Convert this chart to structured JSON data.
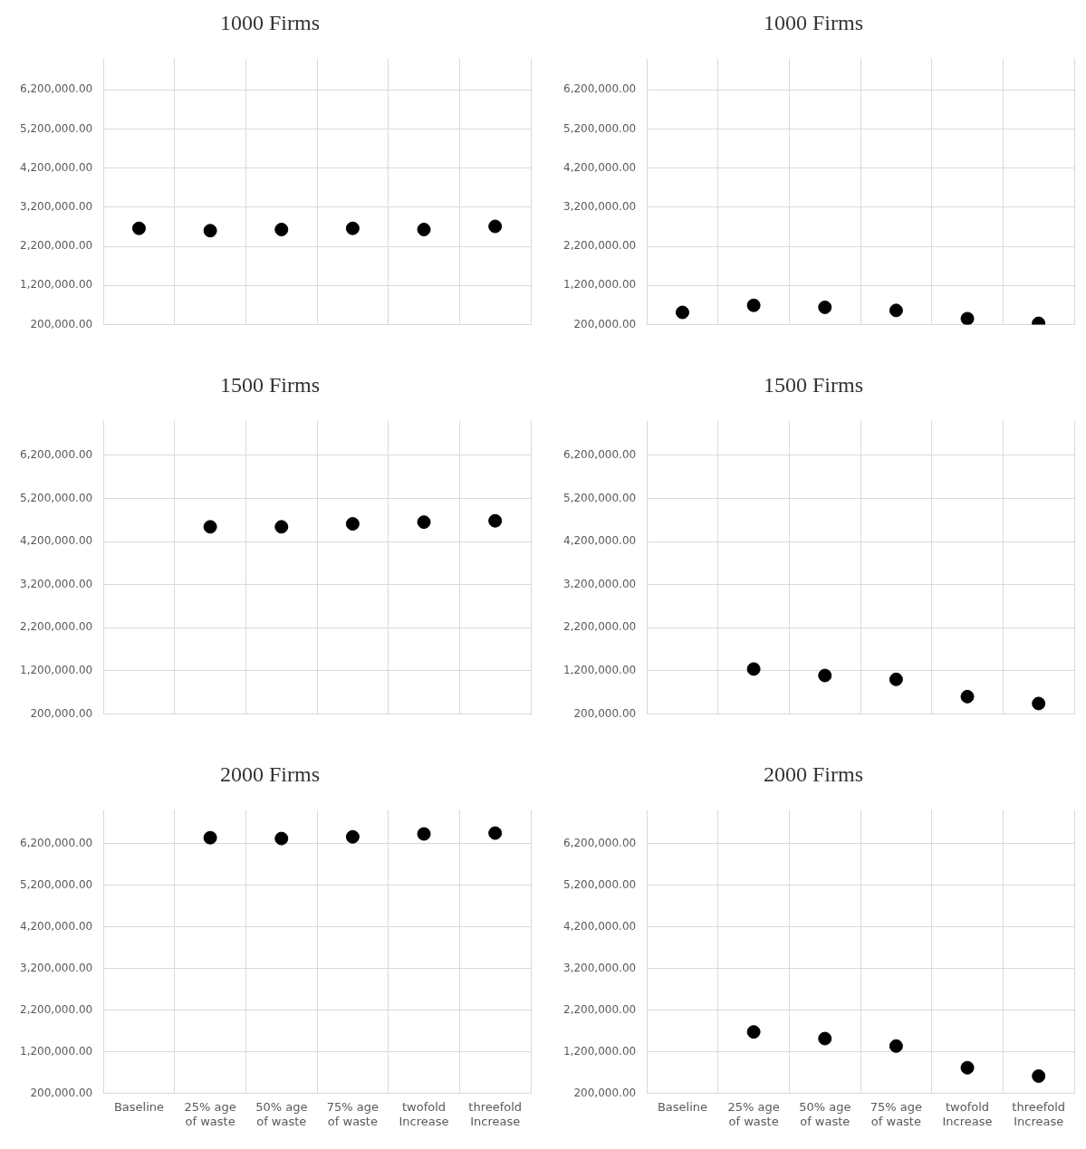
{
  "chart_data": [
    {
      "type": "scatter",
      "title": "1000 Firms",
      "categories": [
        null,
        null,
        null,
        null,
        null,
        null
      ],
      "series": [
        {
          "color": "#000000",
          "values": [
            2660000,
            2600000,
            2630000,
            2660000,
            2630000,
            2710000
          ]
        }
      ],
      "ylim": [
        200000,
        7000000
      ],
      "yticks": [
        {
          "value": 200000,
          "label": "200,000.00"
        },
        {
          "value": 1200000,
          "label": "1,200,000.00"
        },
        {
          "value": 2200000,
          "label": "2,200,000.00"
        },
        {
          "value": 3200000,
          "label": "3,200,000.00"
        },
        {
          "value": 4200000,
          "label": "4,200,000.00"
        },
        {
          "value": 5200000,
          "label": "5,200,000.00"
        },
        {
          "value": 6200000,
          "label": "6,200,000.00"
        }
      ],
      "grid": true,
      "legend": false,
      "marker": "circle"
    },
    {
      "type": "scatter",
      "title": "1000 Firms",
      "categories": [
        null,
        null,
        null,
        null,
        null,
        null
      ],
      "series": [
        {
          "color": "#000000",
          "values": [
            510000,
            690000,
            640000,
            560000,
            350000,
            230000
          ]
        }
      ],
      "ylim": [
        200000,
        7000000
      ],
      "yticks": [
        {
          "value": 200000,
          "label": "200,000.00"
        },
        {
          "value": 1200000,
          "label": "1,200,000.00"
        },
        {
          "value": 2200000,
          "label": "2,200,000.00"
        },
        {
          "value": 3200000,
          "label": "3,200,000.00"
        },
        {
          "value": 4200000,
          "label": "4,200,000.00"
        },
        {
          "value": 5200000,
          "label": "5,200,000.00"
        },
        {
          "value": 6200000,
          "label": "6,200,000.00"
        }
      ],
      "grid": true,
      "legend": false,
      "marker": "circle"
    },
    {
      "type": "scatter",
      "title": "1500 Firms",
      "categories": [
        null,
        null,
        null,
        null,
        null,
        null
      ],
      "series": [
        {
          "color": "#000000",
          "values": [
            null,
            4540000,
            4540000,
            4610000,
            4650000,
            4680000
          ]
        }
      ],
      "ylim": [
        200000,
        7000000
      ],
      "yticks": [
        {
          "value": 200000,
          "label": "200,000.00"
        },
        {
          "value": 1200000,
          "label": "1,200,000.00"
        },
        {
          "value": 2200000,
          "label": "2,200,000.00"
        },
        {
          "value": 3200000,
          "label": "3,200,000.00"
        },
        {
          "value": 4200000,
          "label": "4,200,000.00"
        },
        {
          "value": 5200000,
          "label": "5,200,000.00"
        },
        {
          "value": 6200000,
          "label": "6,200,000.00"
        }
      ],
      "grid": true,
      "legend": false,
      "marker": "circle"
    },
    {
      "type": "scatter",
      "title": "1500 Firms",
      "categories": [
        null,
        null,
        null,
        null,
        null,
        null
      ],
      "series": [
        {
          "color": "#000000",
          "values": [
            null,
            1240000,
            1090000,
            1000000,
            600000,
            440000
          ]
        }
      ],
      "ylim": [
        200000,
        7000000
      ],
      "yticks": [
        {
          "value": 200000,
          "label": "200,000.00"
        },
        {
          "value": 1200000,
          "label": "1,200,000.00"
        },
        {
          "value": 2200000,
          "label": "2,200,000.00"
        },
        {
          "value": 3200000,
          "label": "3,200,000.00"
        },
        {
          "value": 4200000,
          "label": "4,200,000.00"
        },
        {
          "value": 5200000,
          "label": "5,200,000.00"
        },
        {
          "value": 6200000,
          "label": "6,200,000.00"
        }
      ],
      "grid": true,
      "legend": false,
      "marker": "circle"
    },
    {
      "type": "scatter",
      "title": "2000 Firms",
      "categories": [
        "Baseline",
        "25% age\nof waste",
        "50% age\nof waste",
        "75% age\nof waste",
        "twofold\nIncrease",
        "threefold\nIncrease"
      ],
      "series": [
        {
          "color": "#000000",
          "values": [
            null,
            6340000,
            6320000,
            6360000,
            6430000,
            6450000
          ]
        }
      ],
      "ylim": [
        200000,
        7000000
      ],
      "yticks": [
        {
          "value": 200000,
          "label": "200,000.00"
        },
        {
          "value": 1200000,
          "label": "1,200,000.00"
        },
        {
          "value": 2200000,
          "label": "2,200,000.00"
        },
        {
          "value": 3200000,
          "label": "3,200,000.00"
        },
        {
          "value": 4200000,
          "label": "4,200,000.00"
        },
        {
          "value": 5200000,
          "label": "5,200,000.00"
        },
        {
          "value": 6200000,
          "label": "6,200,000.00"
        }
      ],
      "grid": true,
      "legend": false,
      "marker": "circle"
    },
    {
      "type": "scatter",
      "title": "2000 Firms",
      "categories": [
        "Baseline",
        "25% age\nof waste",
        "50% age\nof waste",
        "75% age\nof waste",
        "twofold\nIncrease",
        "threefold\nIncrease"
      ],
      "series": [
        {
          "color": "#000000",
          "values": [
            null,
            1680000,
            1520000,
            1340000,
            820000,
            620000
          ]
        }
      ],
      "ylim": [
        200000,
        7000000
      ],
      "yticks": [
        {
          "value": 200000,
          "label": "200,000.00"
        },
        {
          "value": 1200000,
          "label": "1,200,000.00"
        },
        {
          "value": 2200000,
          "label": "2,200,000.00"
        },
        {
          "value": 3200000,
          "label": "3,200,000.00"
        },
        {
          "value": 4200000,
          "label": "4,200,000.00"
        },
        {
          "value": 5200000,
          "label": "5,200,000.00"
        },
        {
          "value": 6200000,
          "label": "6,200,000.00"
        }
      ],
      "grid": true,
      "legend": false,
      "marker": "circle"
    }
  ]
}
